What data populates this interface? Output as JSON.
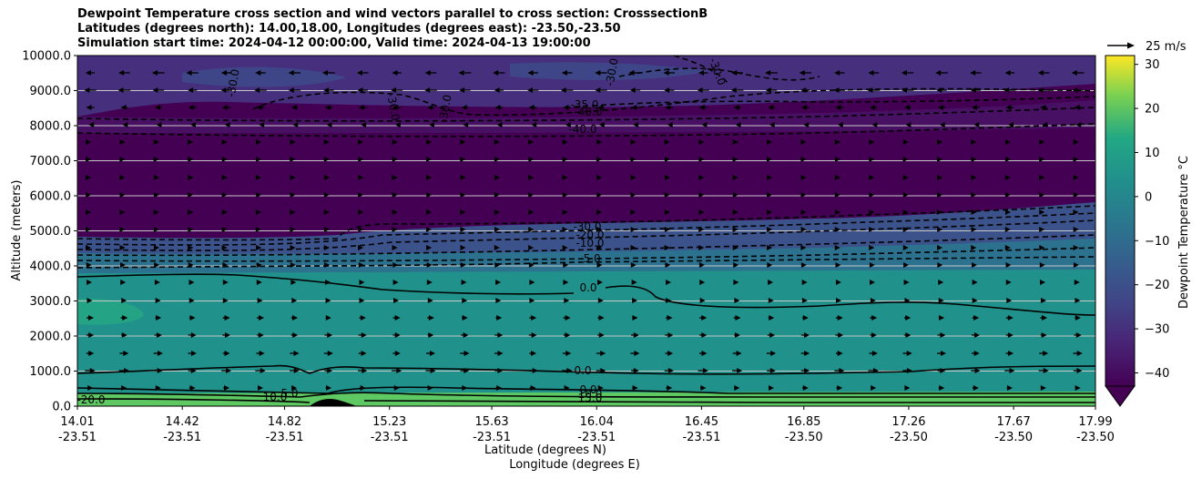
{
  "chart_data": {
    "type": "heatmap",
    "title": [
      "Dewpoint Temperature cross section and wind vectors parallel to cross section: CrosssectionB",
      "Latitudes (degrees north): 14.00,18.00, Longitudes (degrees east): -23.50,-23.50",
      "Simulation start time: 2024-04-12 00:00:00, Valid time: 2024-04-13 19:00:00"
    ],
    "ylabel": "Altitude (meters)",
    "xlabel": "Latitude (degrees N)",
    "xlabel2": "Longitude (degrees E)",
    "ylim": [
      0,
      10000
    ],
    "xlim": [
      14.01,
      17.99
    ],
    "y_ticks": [
      "0.0",
      "1000.0",
      "2000.0",
      "3000.0",
      "4000.0",
      "5000.0",
      "6000.0",
      "7000.0",
      "8000.0",
      "9000.0",
      "10000.0"
    ],
    "x_ticks": [
      {
        "lat": "14.01",
        "lon": "-23.51"
      },
      {
        "lat": "14.42",
        "lon": "-23.51"
      },
      {
        "lat": "14.82",
        "lon": "-23.51"
      },
      {
        "lat": "15.23",
        "lon": "-23.51"
      },
      {
        "lat": "15.63",
        "lon": "-23.51"
      },
      {
        "lat": "16.04",
        "lon": "-23.51"
      },
      {
        "lat": "16.45",
        "lon": "-23.51"
      },
      {
        "lat": "16.85",
        "lon": "-23.50"
      },
      {
        "lat": "17.26",
        "lon": "-23.50"
      },
      {
        "lat": "17.67",
        "lon": "-23.50"
      },
      {
        "lat": "17.99",
        "lon": "-23.50"
      }
    ],
    "colorbar": {
      "label": "Dewpoint Temperature $^\\circ$C",
      "range": [
        -43,
        32
      ],
      "ticks": [
        "30",
        "20",
        "10",
        "0",
        "−10",
        "−20",
        "−30",
        "−40"
      ],
      "colormap": "viridis"
    },
    "quiver_key": "25 m/s",
    "contour_labels": [
      "-30.0",
      "-30.0",
      "-30.0",
      "-30.0",
      "-30.0",
      "-40.0",
      "-40.0",
      "-35.0",
      "-30.0",
      "-20.0",
      "-10.0",
      "-5.0",
      "0.0",
      "0.0",
      "5.0",
      "10.0",
      "-20.0",
      "0.0",
      "10.0",
      "15.0"
    ],
    "grid": "horizontal"
  }
}
